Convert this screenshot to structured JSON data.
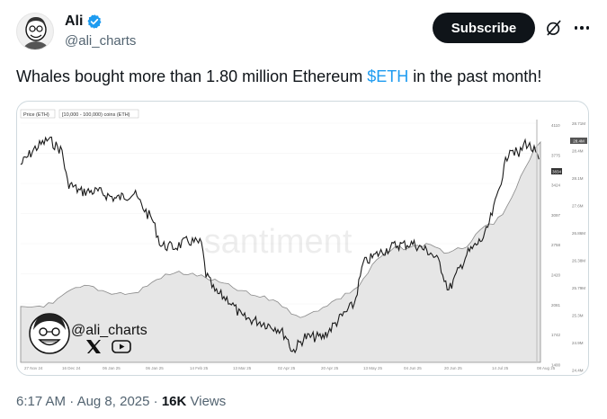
{
  "author": {
    "display_name": "Ali",
    "handle": "@ali_charts",
    "verified": true
  },
  "header": {
    "subscribe_label": "Subscribe",
    "icons": [
      "grok-icon",
      "more-icon"
    ]
  },
  "tweet": {
    "text_before": "Whales bought more than 1.80 million Ethereum ",
    "cashtag": "$ETH",
    "text_after": " in the past month!"
  },
  "media": {
    "legend_price": "Price (ETH)",
    "legend_holdings": "[10,000 - 100,000) coins (ETH)",
    "watermark": "santiment",
    "overlay_handle": "@ali_charts",
    "x_ticks": [
      "27 Nov 24",
      "16 Dec 24",
      "06 Jan 25",
      "06 Jan 25",
      "14 Feb 25",
      "13 Mar 25",
      "02 Apr 25",
      "20 Apr 25",
      "13 May 25",
      "04 Jun 25",
      "20 Jun 25",
      "14 Jul 25",
      "08 Aug 25"
    ],
    "price_ticks": [
      "4110",
      "3775",
      "3424",
      "3097",
      "2758",
      "2420",
      "2081",
      "1742",
      "1400"
    ],
    "holdings_ticks": [
      "28.71M",
      "28.4M",
      "28.1M",
      "27.6M",
      "26.86M",
      "26.38M",
      "25.79M",
      "25.3M",
      "24.9M",
      "24.4M"
    ],
    "price_badge": "3834",
    "holdings_badge": "28.4M",
    "colors": {
      "price_line": "#1a1a1a",
      "holdings_area": "#e6e6e6",
      "holdings_line": "#8a8a8a"
    }
  },
  "meta": {
    "time": "6:17 AM",
    "date": "Aug 8, 2025",
    "views_count": "16K",
    "views_label": "Views"
  }
}
